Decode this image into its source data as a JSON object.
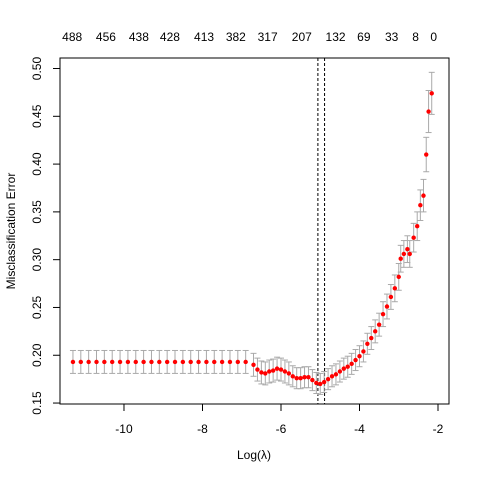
{
  "chart_data": {
    "type": "errorbar_scatter",
    "x_label": "Log(λ)",
    "y_label": "Misclassification Error",
    "xlim": [
      -11.63,
      -1.72
    ],
    "ylim": [
      0.149,
      0.511
    ],
    "xticks": [
      -10,
      -8,
      -6,
      -4,
      -2
    ],
    "yticks": [
      0.15,
      {
        "value": 0.2,
        "label": "0.20"
      },
      0.25,
      {
        "value": 0.3,
        "label": "0.30"
      },
      0.35,
      {
        "value": 0.4,
        "label": "0.40"
      },
      0.45,
      {
        "value": 0.5,
        "label": "0.50"
      }
    ],
    "top_ticks": [
      {
        "value": -11.32,
        "label": "488"
      },
      {
        "value": -10.46,
        "label": "456"
      },
      {
        "value": -9.62,
        "label": "438"
      },
      {
        "value": -8.83,
        "label": "428"
      },
      {
        "value": -7.96,
        "label": "413"
      },
      {
        "value": -7.15,
        "label": "382"
      },
      {
        "value": -6.34,
        "label": "317"
      },
      {
        "value": -5.47,
        "label": "207"
      },
      {
        "value": -4.61,
        "label": "132"
      },
      {
        "value": -3.89,
        "label": "69"
      },
      {
        "value": -3.18,
        "label": "33"
      },
      {
        "value": -2.57,
        "label": "8"
      },
      {
        "value": -2.11,
        "label": "0"
      }
    ],
    "vlines": [
      -5.06,
      -4.89
    ],
    "series": [
      {
        "color": "#ff0000",
        "error_color": "#a9a9a9",
        "x": [
          -11.3,
          -11.1,
          -10.9,
          -10.7,
          -10.5,
          -10.3,
          -10.1,
          -9.9,
          -9.7,
          -9.5,
          -9.3,
          -9.1,
          -8.9,
          -8.7,
          -8.5,
          -8.3,
          -8.1,
          -7.9,
          -7.7,
          -7.5,
          -7.3,
          -7.1,
          -6.9,
          -6.7,
          -6.6,
          -6.5,
          -6.4,
          -6.3,
          -6.2,
          -6.1,
          -6.0,
          -5.9,
          -5.8,
          -5.7,
          -5.6,
          -5.5,
          -5.4,
          -5.3,
          -5.2,
          -5.1,
          -5.0,
          -4.9,
          -4.8,
          -4.7,
          -4.6,
          -4.5,
          -4.4,
          -4.3,
          -4.2,
          -4.1,
          -4.0,
          -3.9,
          -3.8,
          -3.7,
          -3.6,
          -3.5,
          -3.4,
          -3.3,
          -3.2,
          -3.1,
          -3.0,
          -2.95,
          -2.87,
          -2.78,
          -2.72,
          -2.62,
          -2.53,
          -2.45,
          -2.37,
          -2.3,
          -2.24,
          -2.16
        ],
        "values": [
          0.193,
          0.193,
          0.193,
          0.193,
          0.193,
          0.193,
          0.193,
          0.193,
          0.193,
          0.193,
          0.193,
          0.193,
          0.193,
          0.193,
          0.193,
          0.193,
          0.193,
          0.193,
          0.193,
          0.193,
          0.193,
          0.193,
          0.193,
          0.19,
          0.185,
          0.182,
          0.181,
          0.183,
          0.184,
          0.186,
          0.185,
          0.183,
          0.181,
          0.178,
          0.176,
          0.176,
          0.177,
          0.177,
          0.174,
          0.171,
          0.17,
          0.172,
          0.175,
          0.178,
          0.18,
          0.183,
          0.186,
          0.188,
          0.191,
          0.195,
          0.199,
          0.204,
          0.212,
          0.218,
          0.225,
          0.232,
          0.243,
          0.251,
          0.261,
          0.27,
          0.282,
          0.301,
          0.306,
          0.311,
          0.306,
          0.323,
          0.335,
          0.357,
          0.367,
          0.41,
          0.455,
          0.474
        ],
        "errors": [
          0.012,
          0.012,
          0.012,
          0.012,
          0.012,
          0.012,
          0.012,
          0.012,
          0.012,
          0.012,
          0.012,
          0.012,
          0.012,
          0.012,
          0.012,
          0.012,
          0.012,
          0.012,
          0.012,
          0.012,
          0.012,
          0.012,
          0.012,
          0.012,
          0.012,
          0.012,
          0.012,
          0.012,
          0.012,
          0.012,
          0.012,
          0.012,
          0.012,
          0.011,
          0.011,
          0.011,
          0.011,
          0.011,
          0.011,
          0.011,
          0.011,
          0.011,
          0.011,
          0.011,
          0.011,
          0.011,
          0.011,
          0.011,
          0.011,
          0.011,
          0.011,
          0.011,
          0.011,
          0.012,
          0.012,
          0.012,
          0.013,
          0.013,
          0.013,
          0.014,
          0.014,
          0.014,
          0.014,
          0.014,
          0.014,
          0.015,
          0.015,
          0.016,
          0.017,
          0.018,
          0.022,
          0.022
        ]
      }
    ]
  }
}
